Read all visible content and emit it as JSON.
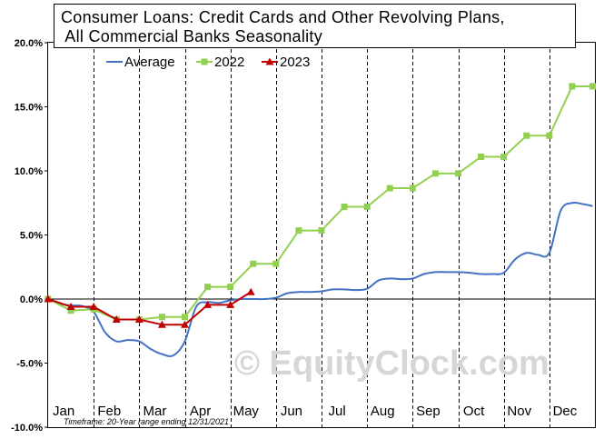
{
  "chart_data": {
    "type": "line",
    "title_lines": [
      "Consumer Loans: Credit Cards and Other Revolving Plans,",
      " All Commercial Banks Seasonality"
    ],
    "categories": [
      "Jan",
      "Feb",
      "Mar",
      "Apr",
      "May",
      "Jun",
      "Jul",
      "Aug",
      "Sep",
      "Oct",
      "Nov",
      "Dec"
    ],
    "y_ticks": [
      "20.0%",
      "15.0%",
      "10.0%",
      "5.0%",
      "0.0%",
      "-5.0%",
      "-10.0%"
    ],
    "ylim": [
      -10,
      20
    ],
    "xlim": [
      0,
      12
    ],
    "grid": "vertical dashed month separators",
    "legend_position": "top",
    "series": [
      {
        "name": "Average",
        "color": "#4472C4",
        "marker": "none",
        "points": [
          [
            0,
            0
          ],
          [
            0.25,
            -0.35
          ],
          [
            0.5,
            -0.5
          ],
          [
            0.75,
            -0.55
          ],
          [
            1.0,
            -1.0
          ],
          [
            1.25,
            -2.6
          ],
          [
            1.5,
            -3.3
          ],
          [
            1.75,
            -3.2
          ],
          [
            2.0,
            -3.3
          ],
          [
            2.25,
            -3.9
          ],
          [
            2.5,
            -4.3
          ],
          [
            2.75,
            -4.4
          ],
          [
            3.0,
            -3.3
          ],
          [
            3.25,
            -0.6
          ],
          [
            3.5,
            -0.25
          ],
          [
            3.75,
            -0.3
          ],
          [
            4.0,
            -0.1
          ],
          [
            4.25,
            0.0
          ],
          [
            4.5,
            0.0
          ],
          [
            4.75,
            0.0
          ],
          [
            5.0,
            0.1
          ],
          [
            5.25,
            0.45
          ],
          [
            5.5,
            0.55
          ],
          [
            5.75,
            0.55
          ],
          [
            6.0,
            0.6
          ],
          [
            6.25,
            0.75
          ],
          [
            6.5,
            0.75
          ],
          [
            6.75,
            0.7
          ],
          [
            7.0,
            0.8
          ],
          [
            7.25,
            1.45
          ],
          [
            7.5,
            1.6
          ],
          [
            7.75,
            1.55
          ],
          [
            8.0,
            1.6
          ],
          [
            8.25,
            1.95
          ],
          [
            8.5,
            2.1
          ],
          [
            8.75,
            2.1
          ],
          [
            9.0,
            2.1
          ],
          [
            9.25,
            2.05
          ],
          [
            9.5,
            1.95
          ],
          [
            9.75,
            1.95
          ],
          [
            10.0,
            2.05
          ],
          [
            10.25,
            3.1
          ],
          [
            10.5,
            3.6
          ],
          [
            10.75,
            3.45
          ],
          [
            11.0,
            3.6
          ],
          [
            11.25,
            6.9
          ],
          [
            11.5,
            7.5
          ],
          [
            11.75,
            7.4
          ],
          [
            11.95,
            7.25
          ]
        ]
      },
      {
        "name": "2022",
        "color": "#92D050",
        "marker": "square",
        "points": [
          [
            0.0,
            0.0
          ],
          [
            0.5,
            -0.9
          ],
          [
            1.0,
            -0.8
          ],
          [
            1.5,
            -1.6
          ],
          [
            2.0,
            -1.6
          ],
          [
            2.5,
            -1.4
          ],
          [
            3.0,
            -1.4
          ],
          [
            3.5,
            0.95
          ],
          [
            4.0,
            0.95
          ],
          [
            4.5,
            2.75
          ],
          [
            5.0,
            2.75
          ],
          [
            5.5,
            5.35
          ],
          [
            6.0,
            5.35
          ],
          [
            6.5,
            7.2
          ],
          [
            7.0,
            7.2
          ],
          [
            7.5,
            8.65
          ],
          [
            8.0,
            8.65
          ],
          [
            8.5,
            9.8
          ],
          [
            9.0,
            9.8
          ],
          [
            9.5,
            11.1
          ],
          [
            10.0,
            11.1
          ],
          [
            10.5,
            12.75
          ],
          [
            11.0,
            12.75
          ],
          [
            11.5,
            16.6
          ],
          [
            11.95,
            16.6
          ]
        ]
      },
      {
        "name": "2023",
        "color": "#C00000",
        "marker": "triangle",
        "points": [
          [
            0.0,
            0.0
          ],
          [
            0.5,
            -0.6
          ],
          [
            1.0,
            -0.6
          ],
          [
            1.5,
            -1.6
          ],
          [
            2.0,
            -1.6
          ],
          [
            2.5,
            -2.0
          ],
          [
            3.0,
            -2.0
          ],
          [
            3.5,
            -0.45
          ],
          [
            4.0,
            -0.45
          ],
          [
            4.45,
            0.55
          ]
        ]
      }
    ],
    "footnote": "Timeframe: 20-Year range ending 12/31/2021",
    "watermark": "© EquityClock.com"
  }
}
